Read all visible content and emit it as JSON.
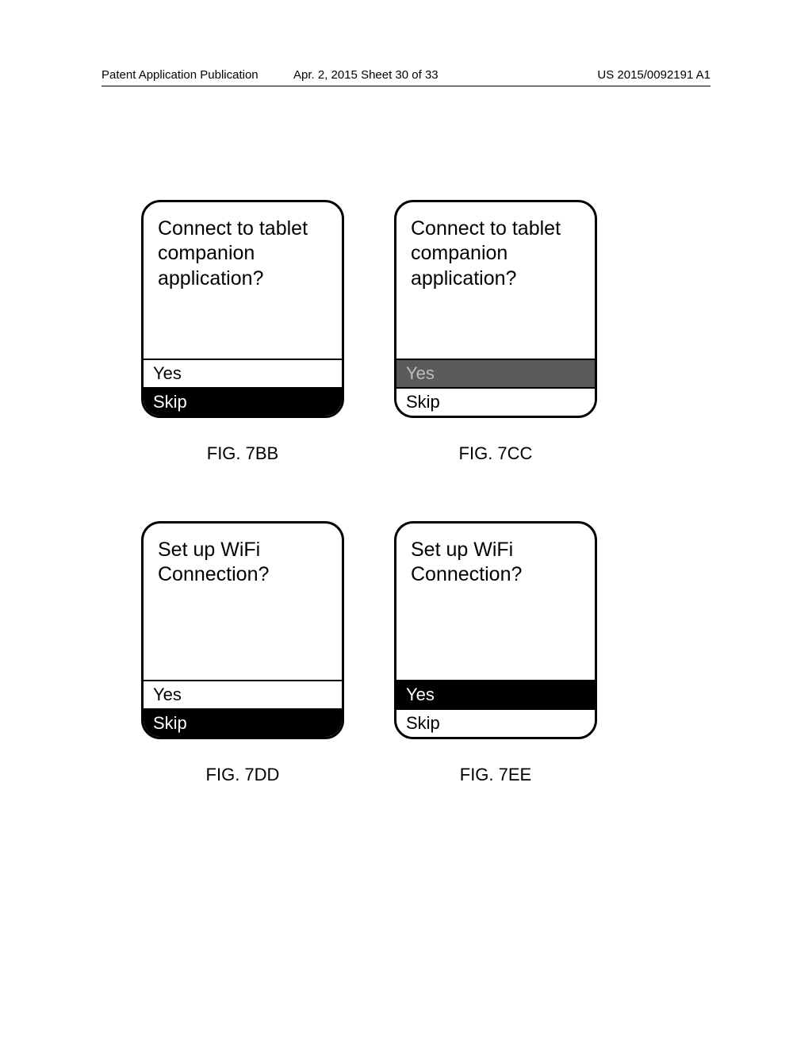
{
  "header": {
    "left": "Patent Application Publication",
    "center": "Apr. 2, 2015  Sheet 30 of 33",
    "right": "US 2015/0092191 A1"
  },
  "figures": {
    "bb": {
      "prompt": "Connect to tablet companion application?",
      "option1": "Yes",
      "option2": "Skip",
      "label": "FIG. 7BB"
    },
    "cc": {
      "prompt": "Connect to tablet companion application?",
      "option1": "Yes",
      "option2": "Skip",
      "label": "FIG. 7CC"
    },
    "dd": {
      "prompt": "Set up WiFi Connection?",
      "option1": "Yes",
      "option2": "Skip",
      "label": "FIG. 7DD"
    },
    "ee": {
      "prompt": "Set up WiFi Connection?",
      "option1": "Yes",
      "option2": "Skip",
      "label": "FIG. 7EE"
    }
  }
}
